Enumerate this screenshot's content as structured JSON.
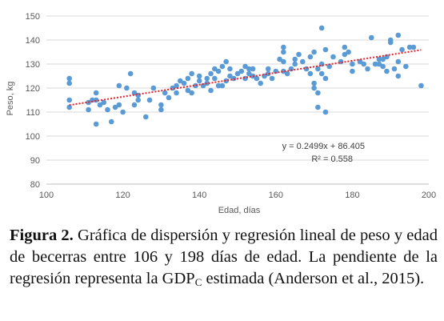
{
  "chart_data": {
    "type": "scatter",
    "title": "",
    "xlabel": "Edad, días",
    "ylabel": "Peso, kg",
    "xlim": [
      100,
      200
    ],
    "ylim": [
      80,
      150
    ],
    "x_ticks": [
      100,
      120,
      140,
      160,
      180,
      200
    ],
    "y_ticks": [
      80,
      90,
      100,
      110,
      120,
      130,
      140,
      150
    ],
    "grid": "horizontal",
    "point_color": "#5b9bd5",
    "trendline": {
      "slope": 0.2499,
      "intercept": 86.405,
      "x_range": [
        106,
        198
      ],
      "color": "#e8212c",
      "style": "dotted",
      "equation": "y = 0.2499x + 86.405",
      "r2": "R² = 0.558"
    },
    "points": [
      [
        106,
        112
      ],
      [
        106,
        115
      ],
      [
        106,
        122
      ],
      [
        106,
        124
      ],
      [
        111,
        111
      ],
      [
        111,
        114
      ],
      [
        112,
        115
      ],
      [
        113,
        105
      ],
      [
        113,
        115
      ],
      [
        113,
        118
      ],
      [
        114,
        113
      ],
      [
        115,
        114
      ],
      [
        116,
        111
      ],
      [
        117,
        106
      ],
      [
        118,
        112
      ],
      [
        119,
        113
      ],
      [
        119,
        121
      ],
      [
        120,
        110
      ],
      [
        121,
        120
      ],
      [
        122,
        126
      ],
      [
        123,
        113
      ],
      [
        123,
        118
      ],
      [
        124,
        117
      ],
      [
        124,
        115
      ],
      [
        126,
        108
      ],
      [
        127,
        115
      ],
      [
        128,
        120
      ],
      [
        130,
        111
      ],
      [
        130,
        113
      ],
      [
        131,
        118
      ],
      [
        132,
        116
      ],
      [
        133,
        120
      ],
      [
        134,
        121
      ],
      [
        134,
        118
      ],
      [
        135,
        123
      ],
      [
        136,
        122
      ],
      [
        137,
        119
      ],
      [
        137,
        124
      ],
      [
        138,
        118
      ],
      [
        138,
        126
      ],
      [
        139,
        121
      ],
      [
        140,
        123
      ],
      [
        140,
        125
      ],
      [
        141,
        121
      ],
      [
        142,
        124
      ],
      [
        142,
        122
      ],
      [
        143,
        119
      ],
      [
        143,
        126
      ],
      [
        144,
        128
      ],
      [
        144,
        124
      ],
      [
        145,
        121
      ],
      [
        145,
        127
      ],
      [
        146,
        121
      ],
      [
        146,
        129
      ],
      [
        147,
        123
      ],
      [
        147,
        131
      ],
      [
        148,
        128
      ],
      [
        148,
        125
      ],
      [
        149,
        124
      ],
      [
        150,
        126
      ],
      [
        151,
        127
      ],
      [
        152,
        129
      ],
      [
        152,
        124
      ],
      [
        153,
        128
      ],
      [
        153,
        126
      ],
      [
        154,
        125
      ],
      [
        154,
        128
      ],
      [
        155,
        124
      ],
      [
        156,
        122
      ],
      [
        157,
        125
      ],
      [
        158,
        128
      ],
      [
        158,
        126
      ],
      [
        159,
        124
      ],
      [
        160,
        127
      ],
      [
        161,
        132
      ],
      [
        162,
        135
      ],
      [
        162,
        137
      ],
      [
        162,
        131
      ],
      [
        162,
        127
      ],
      [
        163,
        126
      ],
      [
        164,
        128
      ],
      [
        165,
        132
      ],
      [
        165,
        130
      ],
      [
        166,
        134
      ],
      [
        167,
        131
      ],
      [
        168,
        128
      ],
      [
        169,
        126
      ],
      [
        169,
        133
      ],
      [
        170,
        120
      ],
      [
        170,
        122
      ],
      [
        170,
        135
      ],
      [
        171,
        128
      ],
      [
        171,
        112
      ],
      [
        171,
        118
      ],
      [
        172,
        145
      ],
      [
        172,
        130
      ],
      [
        172,
        126
      ],
      [
        173,
        136
      ],
      [
        173,
        110
      ],
      [
        173,
        124
      ],
      [
        174,
        129
      ],
      [
        175,
        133
      ],
      [
        177,
        131
      ],
      [
        178,
        137
      ],
      [
        178,
        134
      ],
      [
        179,
        135
      ],
      [
        180,
        130
      ],
      [
        180,
        127
      ],
      [
        182,
        131
      ],
      [
        183,
        130
      ],
      [
        184,
        128
      ],
      [
        185,
        141
      ],
      [
        186,
        130
      ],
      [
        187,
        130
      ],
      [
        187,
        132
      ],
      [
        188,
        129
      ],
      [
        188,
        132
      ],
      [
        189,
        127
      ],
      [
        189,
        133
      ],
      [
        190,
        140
      ],
      [
        190,
        139
      ],
      [
        191,
        128
      ],
      [
        192,
        142
      ],
      [
        192,
        125
      ],
      [
        192,
        131
      ],
      [
        193,
        136
      ],
      [
        194,
        129
      ],
      [
        195,
        137
      ],
      [
        196,
        137
      ],
      [
        198,
        121
      ]
    ]
  },
  "caption": {
    "label": "Figura 2.",
    "text": "Gráfica de dispersión y regresión lineal de peso y edad de becerras entre 106 y 198 días de edad. La pendiente de la regresión representa la GDP",
    "subscript": "C",
    "text_end": "estimada (Anderson et al., 2015)."
  }
}
